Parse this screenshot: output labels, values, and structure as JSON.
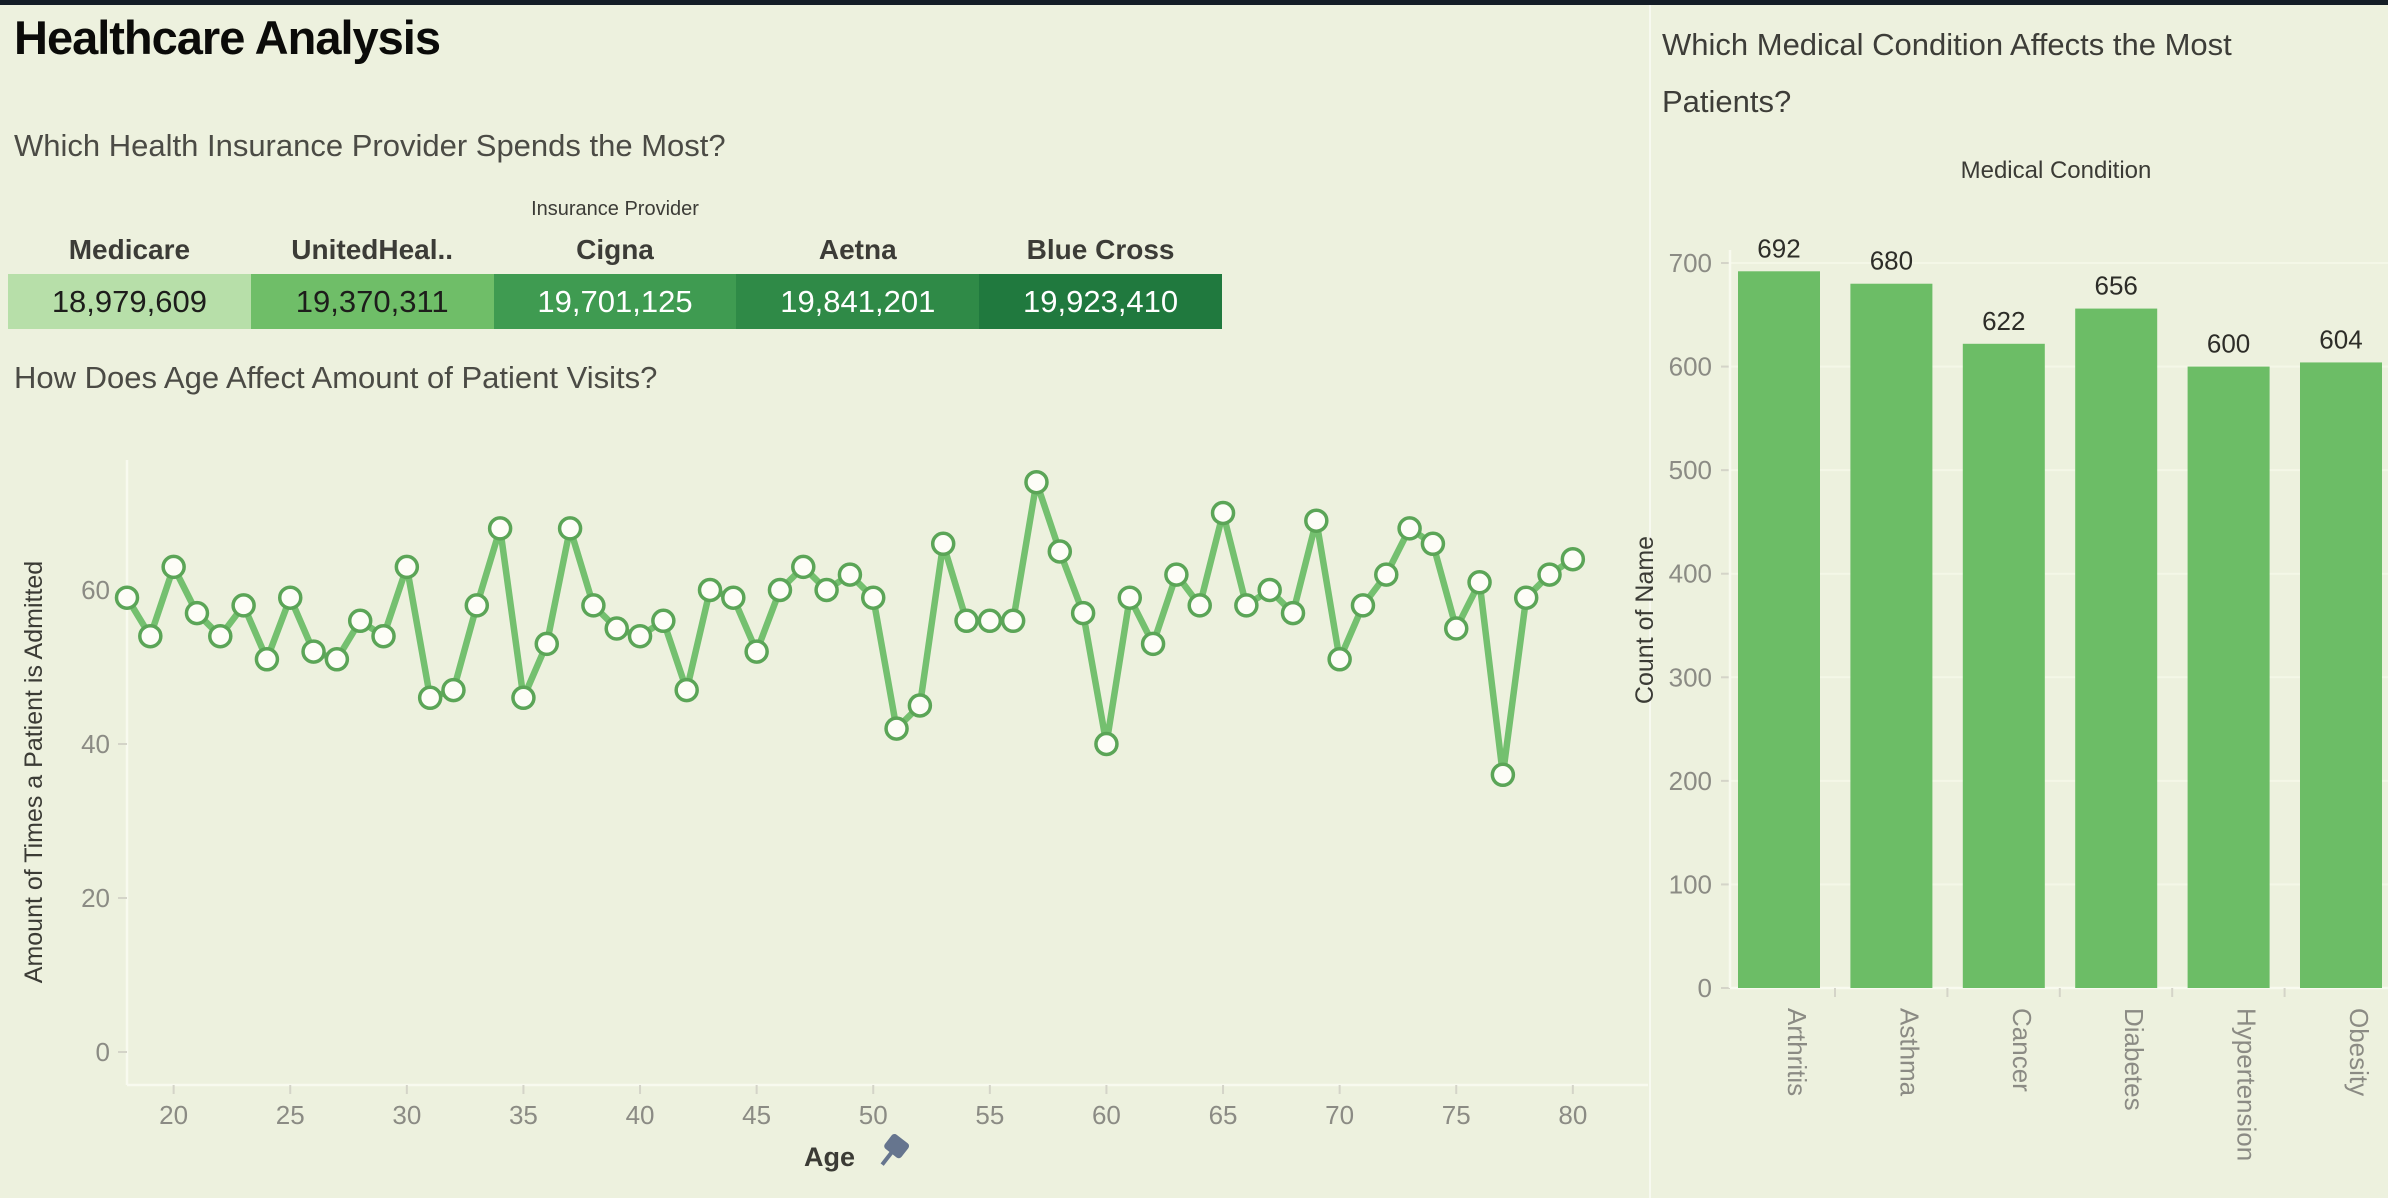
{
  "dashboard_title": "Healthcare Analysis",
  "colors": {
    "background": "#edf1de",
    "top_strip": "#141d26",
    "axis_line": "#f8faef",
    "tick_label": "#8b8b84",
    "axis_title": "#3b3b35",
    "value_label": "#2d2d28",
    "pin_icon": "#66758e"
  },
  "chart_data": [
    {
      "type": "table",
      "question": "Which Health Insurance Provider Spends the Most?",
      "title": "Insurance Provider",
      "categories": [
        "Medicare",
        "UnitedHeal..",
        "Cigna",
        "Aetna",
        "Blue Cross"
      ],
      "values": [
        "18,979,609",
        "19,370,311",
        "19,701,125",
        "19,841,201",
        "19,923,410"
      ],
      "cell_colors": [
        "#b7dfa9",
        "#6fbe68",
        "#3f9b51",
        "#2f8a47",
        "#20793e"
      ],
      "text_colors": [
        "#1d1d1b",
        "#1d1d1b",
        "#ffffff",
        "#ffffff",
        "#ffffff"
      ]
    },
    {
      "type": "line",
      "question": "How Does Age Affect Amount of Patient Visits?",
      "xlabel": "Age",
      "ylabel": "Amount of Times a Patient is Admitted",
      "x_ticks": [
        20,
        25,
        30,
        35,
        40,
        45,
        50,
        55,
        60,
        65,
        70,
        75,
        80
      ],
      "y_ticks": [
        0,
        20,
        40,
        60
      ],
      "xlim": [
        18,
        80
      ],
      "ylim": [
        0,
        80
      ],
      "grid": false,
      "line_color": "#74c06f",
      "marker_fill": "#fdfdf7",
      "marker_stroke": "#5ba557",
      "x": [
        18,
        19,
        20,
        21,
        22,
        23,
        24,
        25,
        26,
        27,
        28,
        29,
        30,
        31,
        32,
        33,
        34,
        35,
        36,
        37,
        38,
        39,
        40,
        41,
        42,
        43,
        44,
        45,
        46,
        47,
        48,
        49,
        50,
        51,
        52,
        53,
        54,
        55,
        56,
        57,
        58,
        59,
        60,
        61,
        62,
        63,
        64,
        65,
        66,
        67,
        68,
        69,
        70,
        71,
        72,
        73,
        74,
        75,
        76,
        77,
        78,
        79,
        80
      ],
      "values": [
        59,
        54,
        63,
        57,
        54,
        58,
        51,
        59,
        52,
        51,
        56,
        54,
        63,
        46,
        47,
        58,
        68,
        46,
        53,
        68,
        58,
        55,
        54,
        56,
        47,
        60,
        59,
        52,
        60,
        63,
        60,
        62,
        59,
        42,
        45,
        66,
        56,
        56,
        56,
        74,
        65,
        57,
        40,
        59,
        53,
        62,
        58,
        70,
        58,
        60,
        57,
        69,
        51,
        58,
        62,
        68,
        66,
        55,
        61,
        36,
        59,
        62,
        64
      ]
    },
    {
      "type": "bar",
      "question": "Which Medical Condition Affects the Most Patients?",
      "title": "Medical Condition",
      "ylabel": "Count of Name",
      "categories": [
        "Arthritis",
        "Asthma",
        "Cancer",
        "Diabetes",
        "Hypertension",
        "Obesity"
      ],
      "values": [
        692,
        680,
        622,
        656,
        600,
        604
      ],
      "y_ticks": [
        0,
        100,
        200,
        300,
        400,
        500,
        600,
        700
      ],
      "ylim": [
        0,
        724
      ],
      "grid": true,
      "bar_color": "#6cbd66"
    }
  ]
}
